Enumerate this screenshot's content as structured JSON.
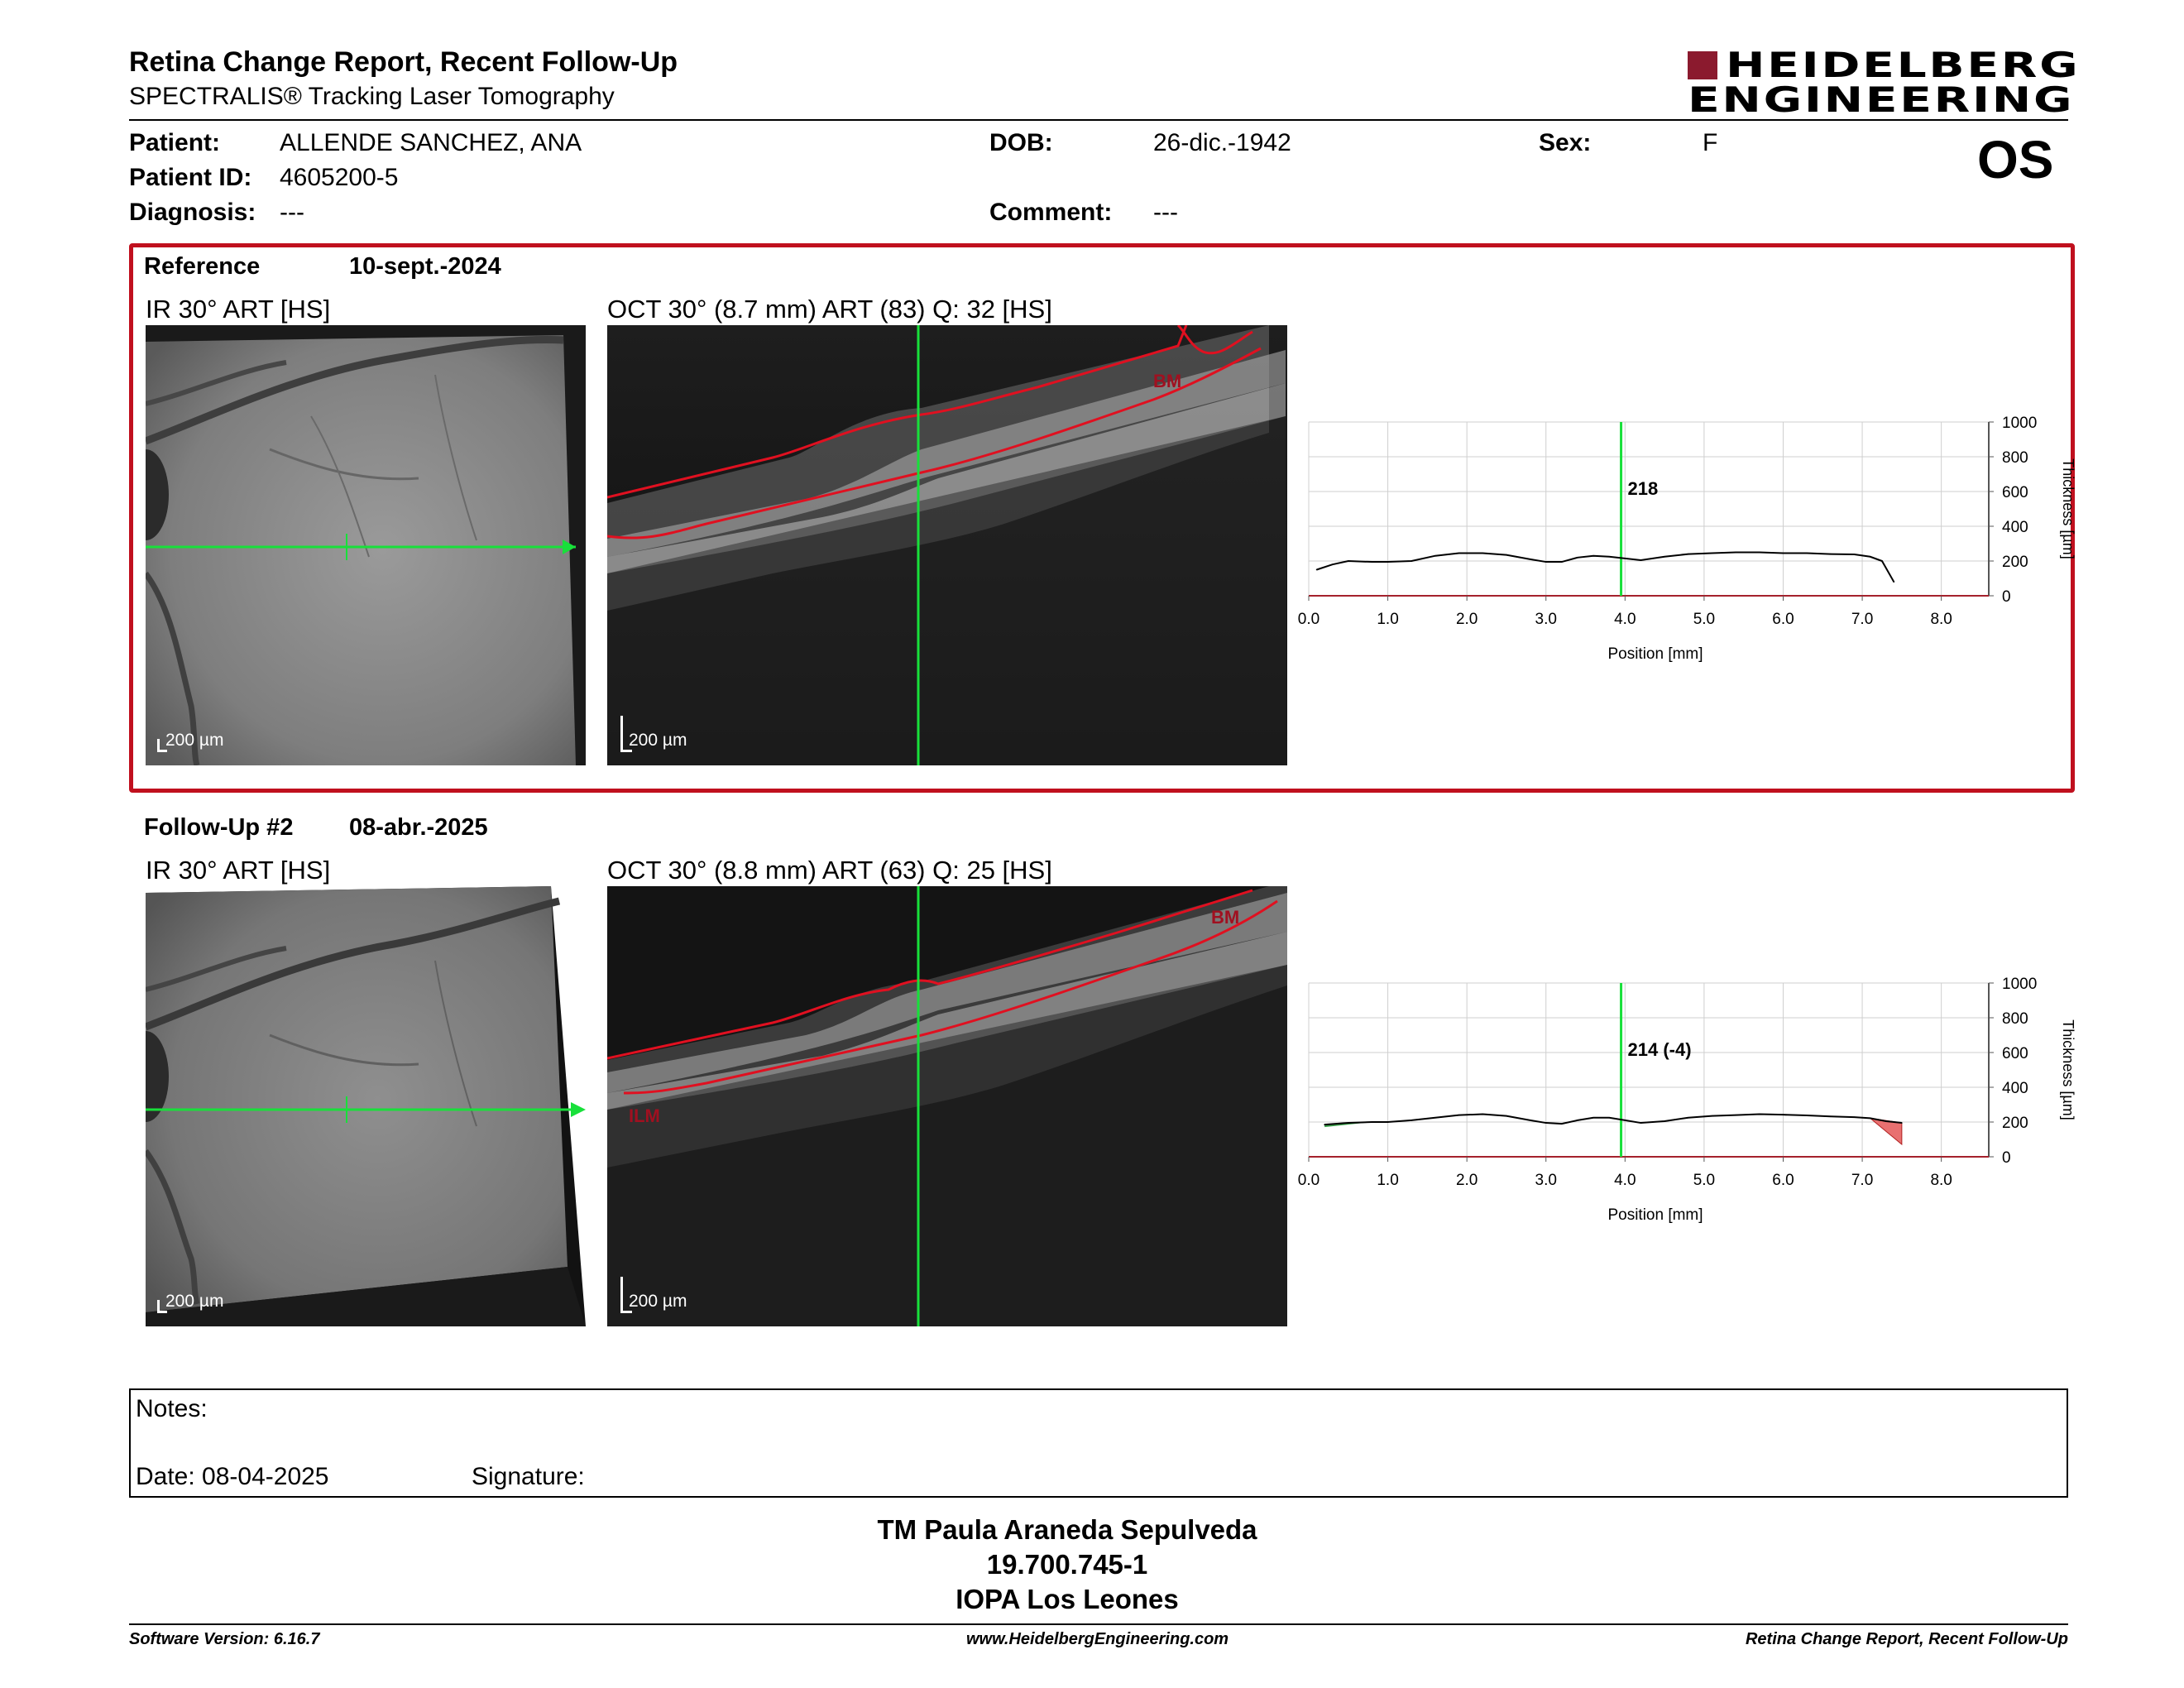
{
  "header": {
    "title": "Retina Change Report, Recent Follow-Up",
    "subtitle": "SPECTRALIS® Tracking Laser Tomography",
    "logo_line1": "HEIDELBERG",
    "logo_line2": "ENGINEERING",
    "eye": "OS",
    "brand_color": "#8b1a2e"
  },
  "patient": {
    "patient_label": "Patient:",
    "patient_value": "ALLENDE SANCHEZ, ANA",
    "id_label": "Patient ID:",
    "id_value": "4605200-5",
    "diagnosis_label": "Diagnosis:",
    "diagnosis_value": "---",
    "dob_label": "DOB:",
    "dob_value": "26-dic.-1942",
    "comment_label": "Comment:",
    "comment_value": "---",
    "sex_label": "Sex:",
    "sex_value": "F"
  },
  "reference": {
    "name": "Reference",
    "date": "10-sept.-2024",
    "ir_caption": "IR 30° ART [HS]",
    "oct_caption": "OCT 30° (8.7 mm) ART (83) Q: 32 [HS]",
    "ir_scale": "200 µm",
    "oct_scale": "200 µm",
    "bm_label": "BM",
    "box_color": "#c0101e"
  },
  "followup": {
    "name": "Follow-Up #2",
    "date": "08-abr.-2025",
    "ir_caption": "IR 30° ART [HS]",
    "oct_caption": "OCT 30° (8.8 mm) ART (63) Q: 25 [HS]",
    "ir_scale": "200 µm",
    "oct_scale": "200 µm",
    "bm_label": "BM",
    "ilm_label": "ILM"
  },
  "chart_data": [
    {
      "type": "line",
      "xlabel": "Position [mm]",
      "ylabel": "Thickness [µm]",
      "xlim": [
        0,
        8.6
      ],
      "ylim": [
        0,
        1000
      ],
      "xticks": [
        "0.0",
        "1.0",
        "2.0",
        "3.0",
        "4.0",
        "5.0",
        "6.0",
        "7.0",
        "8.0"
      ],
      "yticks": [
        "0",
        "200",
        "400",
        "600",
        "800",
        "1000"
      ],
      "marker_x": 3.95,
      "marker_label": "218",
      "grid": true,
      "x": [
        0.1,
        0.3,
        0.5,
        0.8,
        1.0,
        1.3,
        1.6,
        1.9,
        2.2,
        2.5,
        2.8,
        3.0,
        3.2,
        3.4,
        3.6,
        3.8,
        4.0,
        4.2,
        4.5,
        4.8,
        5.1,
        5.4,
        5.7,
        6.0,
        6.3,
        6.6,
        6.9,
        7.1,
        7.25,
        7.4
      ],
      "y": [
        150,
        180,
        200,
        195,
        195,
        200,
        230,
        245,
        245,
        235,
        210,
        195,
        195,
        220,
        230,
        225,
        215,
        205,
        225,
        240,
        245,
        250,
        250,
        245,
        245,
        240,
        238,
        225,
        200,
        80
      ]
    },
    {
      "type": "line",
      "xlabel": "Position [mm]",
      "ylabel": "Thickness [µm]",
      "xlim": [
        0,
        8.6
      ],
      "ylim": [
        0,
        1000
      ],
      "xticks": [
        "0.0",
        "1.0",
        "2.0",
        "3.0",
        "4.0",
        "5.0",
        "6.0",
        "7.0",
        "8.0"
      ],
      "yticks": [
        "0",
        "200",
        "400",
        "600",
        "800",
        "1000"
      ],
      "marker_x": 3.95,
      "marker_label": "214 (-4)",
      "grid": true,
      "x": [
        0.2,
        0.5,
        0.8,
        1.0,
        1.3,
        1.6,
        1.9,
        2.2,
        2.5,
        2.8,
        3.0,
        3.2,
        3.4,
        3.6,
        3.8,
        4.0,
        4.2,
        4.5,
        4.8,
        5.1,
        5.4,
        5.7,
        6.0,
        6.3,
        6.6,
        6.9,
        7.1,
        7.3,
        7.5
      ],
      "y": [
        185,
        195,
        200,
        200,
        210,
        225,
        240,
        245,
        235,
        210,
        195,
        190,
        210,
        225,
        225,
        210,
        195,
        205,
        225,
        235,
        240,
        245,
        242,
        238,
        232,
        228,
        222,
        205,
        195
      ]
    }
  ],
  "notes": {
    "notes_label": "Notes:",
    "date_label": "Date: 08-04-2025",
    "signature_label": "Signature:"
  },
  "signature": {
    "name": "TM Paula Araneda Sepulveda",
    "id": "19.700.745-1",
    "org": "IOPA Los Leones"
  },
  "footer": {
    "software": "Software Version: 6.16.7",
    "website": "www.HeidelbergEngineering.com",
    "report": "Retina Change Report, Recent Follow-Up"
  }
}
